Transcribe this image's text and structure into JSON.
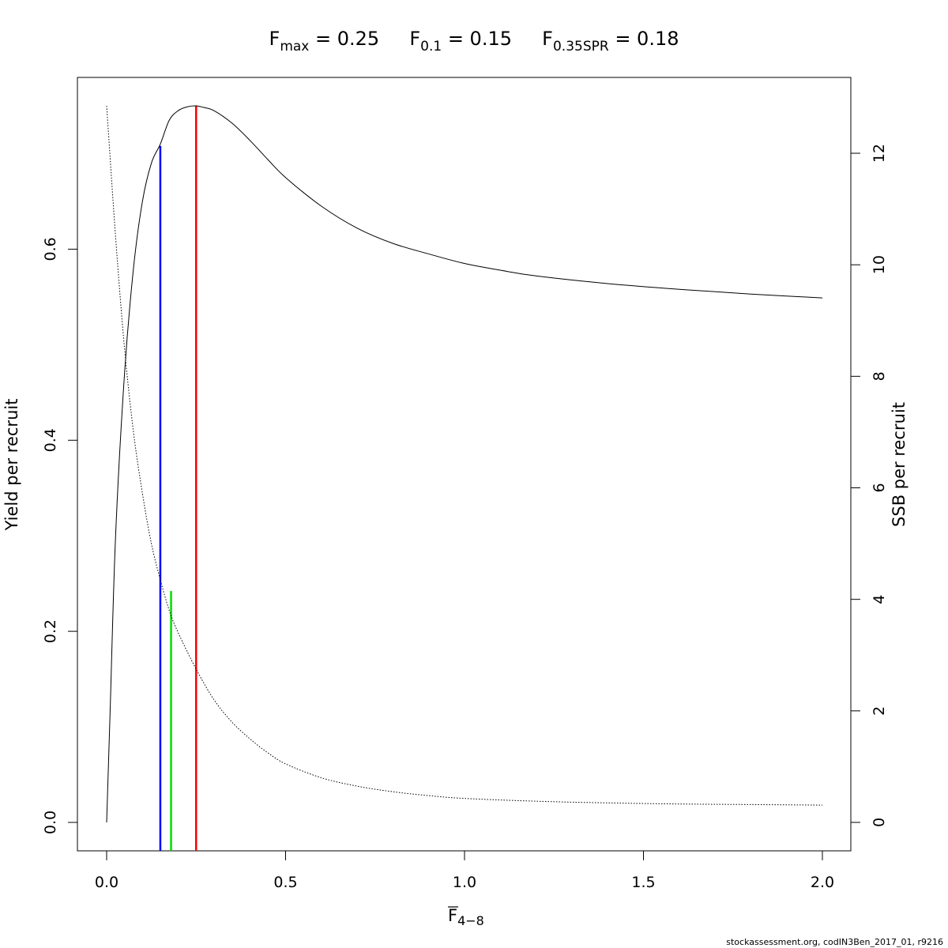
{
  "chart_data": {
    "type": "line",
    "title_parts": [
      {
        "symbol": "F",
        "subscript": "max",
        "value": "= 0.25"
      },
      {
        "symbol": "F",
        "subscript": "0.1",
        "value": "= 0.15"
      },
      {
        "symbol": "F",
        "subscript": "0.35SPR",
        "value": "= 0.18"
      }
    ],
    "xlabel": {
      "symbol": "F",
      "subscript": "4−8",
      "overbar": true
    },
    "ylabel_left": "Yield per recruit",
    "ylabel_right": "SSB per recruit",
    "xlim": [
      0,
      2
    ],
    "ylim_left": [
      0,
      0.75
    ],
    "ylim_right": [
      0,
      12.85
    ],
    "x_ticks": [
      {
        "value": 0.0,
        "label": "0.0"
      },
      {
        "value": 0.5,
        "label": "0.5"
      },
      {
        "value": 1.0,
        "label": "1.0"
      },
      {
        "value": 1.5,
        "label": "1.5"
      },
      {
        "value": 2.0,
        "label": "2.0"
      }
    ],
    "y_left_ticks": [
      {
        "value": 0.0,
        "label": "0.0"
      },
      {
        "value": 0.2,
        "label": "0.2"
      },
      {
        "value": 0.4,
        "label": "0.4"
      },
      {
        "value": 0.6,
        "label": "0.6"
      }
    ],
    "y_right_ticks": [
      {
        "value": 0,
        "label": "0"
      },
      {
        "value": 2,
        "label": "2"
      },
      {
        "value": 4,
        "label": "4"
      },
      {
        "value": 6,
        "label": "6"
      },
      {
        "value": 8,
        "label": "8"
      },
      {
        "value": 10,
        "label": "10"
      },
      {
        "value": 12,
        "label": "12"
      }
    ],
    "series": [
      {
        "axis": "left",
        "style": "solid",
        "color": "#000000",
        "x": [
          0,
          0.01,
          0.025,
          0.05,
          0.075,
          0.1,
          0.125,
          0.15,
          0.175,
          0.2,
          0.225,
          0.25,
          0.275,
          0.3,
          0.35,
          0.4,
          0.45,
          0.5,
          0.6,
          0.7,
          0.8,
          0.9,
          1.0,
          1.1,
          1.2,
          1.4,
          1.6,
          1.8,
          2.0
        ],
        "y": [
          0,
          0.12,
          0.3,
          0.47,
          0.58,
          0.65,
          0.69,
          0.71,
          0.735,
          0.745,
          0.749,
          0.75,
          0.748,
          0.745,
          0.732,
          0.714,
          0.694,
          0.675,
          0.645,
          0.622,
          0.606,
          0.595,
          0.585,
          0.578,
          0.572,
          0.564,
          0.558,
          0.553,
          0.549
        ]
      },
      {
        "axis": "right",
        "style": "dotted",
        "color": "#000000",
        "x": [
          0,
          0.025,
          0.05,
          0.075,
          0.1,
          0.125,
          0.15,
          0.175,
          0.2,
          0.25,
          0.3,
          0.35,
          0.4,
          0.45,
          0.5,
          0.6,
          0.7,
          0.8,
          0.9,
          1.0,
          1.2,
          1.4,
          1.6,
          1.8,
          2.0
        ],
        "y": [
          12.85,
          10.5,
          8.5,
          7.0,
          5.9,
          5.0,
          4.35,
          3.8,
          3.4,
          2.75,
          2.2,
          1.8,
          1.5,
          1.25,
          1.05,
          0.8,
          0.65,
          0.55,
          0.48,
          0.43,
          0.38,
          0.35,
          0.33,
          0.32,
          0.31
        ]
      }
    ],
    "reference_lines": [
      {
        "name": "F0.1",
        "x": 0.15,
        "y_top": 0.708,
        "axis": "left",
        "color": "#0000ff"
      },
      {
        "name": "F0.35SPR",
        "x": 0.18,
        "y_top": 4.15,
        "axis": "right",
        "color": "#00dd00"
      },
      {
        "name": "Fmax",
        "x": 0.25,
        "y_top": 0.75,
        "axis": "left",
        "color": "#ff0000"
      }
    ],
    "footer": "stockassessment.org, codIN3Ben_2017_01, r9216",
    "grid": false,
    "legend": "none"
  }
}
